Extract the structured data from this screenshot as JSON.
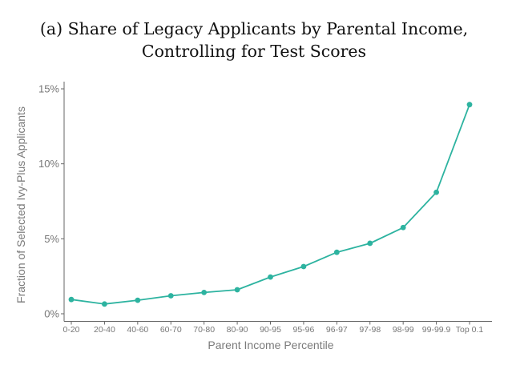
{
  "chart_data": {
    "type": "line",
    "title_line1": "(a) Share of Legacy Applicants by Parental Income,",
    "title_line2": "Controlling for Test Scores",
    "xlabel": "Parent Income Percentile",
    "ylabel": "Fraction of Selected Ivy-Plus Applicants",
    "categories": [
      "0-20",
      "20-40",
      "40-60",
      "60-70",
      "70-80",
      "80-90",
      "90-95",
      "95-96",
      "96-97",
      "97-98",
      "98-99",
      "99-99.9",
      "Top 0.1"
    ],
    "values": [
      0.95,
      0.65,
      0.9,
      1.2,
      1.42,
      1.6,
      2.45,
      3.15,
      4.1,
      4.7,
      5.75,
      8.1,
      13.95
    ],
    "ylim": [
      0,
      15
    ],
    "yticks": [
      0,
      5,
      10,
      15
    ],
    "ytick_labels": [
      "0%",
      "5%",
      "10%",
      "15%"
    ],
    "series_color": "#2db3a0",
    "axis_color": "#666666",
    "grid": false
  }
}
